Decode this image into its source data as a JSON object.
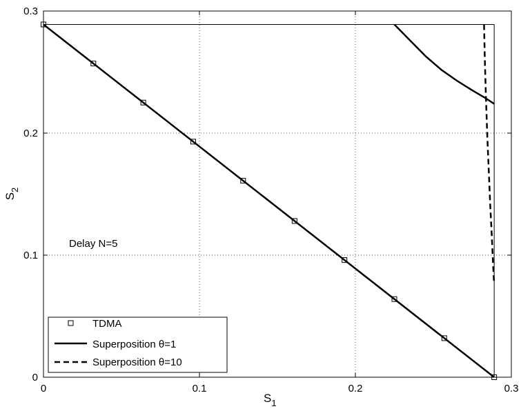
{
  "chart_data": {
    "type": "line",
    "title": "",
    "xlabel": "S",
    "xlabel_sub": "1",
    "ylabel": "S",
    "ylabel_sub": "2",
    "xlim": [
      0,
      0.3
    ],
    "ylim": [
      0,
      0.3
    ],
    "xticks": [
      0,
      0.1,
      0.2,
      0.3
    ],
    "yticks": [
      0,
      0.1,
      0.2,
      0.3
    ],
    "xtick_labels": [
      "0",
      "0.1",
      "0.2",
      "0.3"
    ],
    "ytick_labels": [
      "0",
      "0.1",
      "0.2",
      "0.3"
    ],
    "grid": true,
    "grid_style": "dotted",
    "legend_position": "bottom-left",
    "annotation": "Delay N=5",
    "boundary_box": {
      "x": [
        0,
        0.289
      ],
      "y": [
        0,
        0.289
      ]
    },
    "series": [
      {
        "name": "TDMA",
        "style": "marker-square",
        "x": [
          0,
          0.032,
          0.064,
          0.096,
          0.128,
          0.161,
          0.193,
          0.225,
          0.257,
          0.289
        ],
        "y": [
          0.289,
          0.257,
          0.225,
          0.193,
          0.161,
          0.128,
          0.096,
          0.064,
          0.032,
          0
        ]
      },
      {
        "name": "TDMA-line",
        "style": "solid",
        "x": [
          0,
          0.289
        ],
        "y": [
          0.289,
          0
        ]
      },
      {
        "name": "Superposition θ=1",
        "style": "solid",
        "x": [
          0.225,
          0.235,
          0.245,
          0.255,
          0.265,
          0.275,
          0.283,
          0.289
        ],
        "y": [
          0.289,
          0.276,
          0.263,
          0.252,
          0.243,
          0.235,
          0.229,
          0.224
        ]
      },
      {
        "name": "Superposition θ=10",
        "style": "dashed",
        "x": [
          0.2825,
          0.283,
          0.2837,
          0.2845,
          0.2855,
          0.2865,
          0.2875,
          0.2883,
          0.2889
        ],
        "y": [
          0.289,
          0.26,
          0.23,
          0.2,
          0.17,
          0.14,
          0.115,
          0.092,
          0.078
        ]
      }
    ]
  },
  "legend": {
    "entries": [
      {
        "label": "TDMA",
        "style": "marker-square"
      },
      {
        "label": "Superposition θ=1",
        "style": "solid"
      },
      {
        "label": "Superposition θ=10",
        "style": "dashed"
      }
    ]
  },
  "colors": {
    "line": "#000000",
    "grid": "#555555",
    "background": "#ffffff"
  }
}
